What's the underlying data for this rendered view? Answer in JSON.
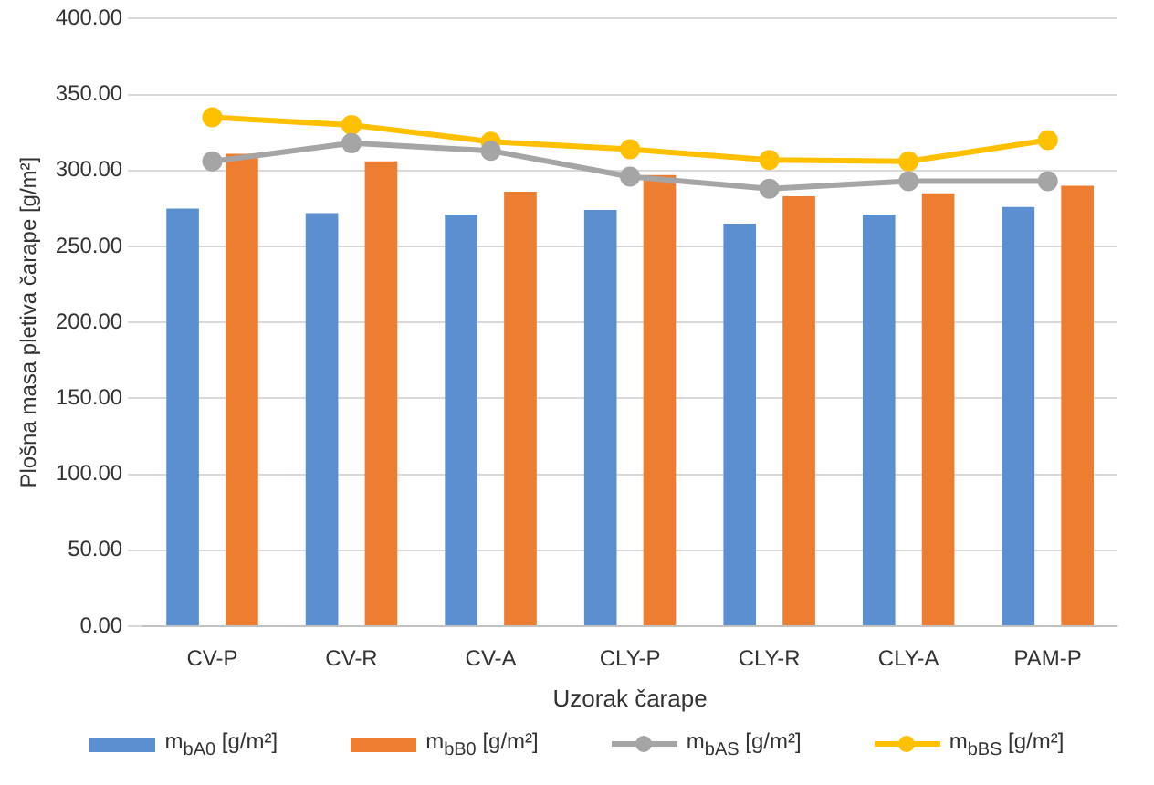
{
  "chart_data": {
    "type": "bar",
    "xlabel": "Uzorak čarape",
    "ylabel": "Plošna masa pletiva čarape [g/m²]",
    "categories": [
      "CV-P",
      "CV-R",
      "CV-A",
      "CLY-P",
      "CLY-R",
      "CLY-A",
      "PAM-P"
    ],
    "series": [
      {
        "name": "m$_{bA0}$ [g/m²]",
        "color": "#5b8fd0",
        "values": [
          275,
          272,
          271,
          274,
          265,
          271,
          276
        ]
      },
      {
        "name": "m$_{bB0}$ [g/m²]",
        "color": "#ed7d31",
        "values": [
          311,
          306,
          286,
          297,
          283,
          285,
          290
        ]
      },
      {
        "name": "m$_{bAS}$ [g/m²]",
        "type": "line",
        "color": "#a5a5a5",
        "values": [
          306,
          318,
          313,
          296,
          288,
          293,
          293
        ]
      },
      {
        "name": "m$_{bBS}$ [g/m²]",
        "type": "line",
        "color": "#ffc000",
        "values": [
          335,
          330,
          319,
          314,
          307,
          306,
          320
        ]
      }
    ],
    "ylim": [
      0,
      400
    ],
    "yticks": [
      {
        "value": 0,
        "label": "0.00"
      },
      {
        "value": 50,
        "label": "50.00"
      },
      {
        "value": 100,
        "label": "100.00"
      },
      {
        "value": 150,
        "label": "150.00"
      },
      {
        "value": 200,
        "label": "200.00"
      },
      {
        "value": 250,
        "label": "250.00"
      },
      {
        "value": 300,
        "label": "300.00"
      },
      {
        "value": 350,
        "label": "350.00"
      },
      {
        "value": 400,
        "label": "400.00"
      }
    ],
    "grid": "y",
    "legend": "bottom",
    "marker": "circle"
  }
}
